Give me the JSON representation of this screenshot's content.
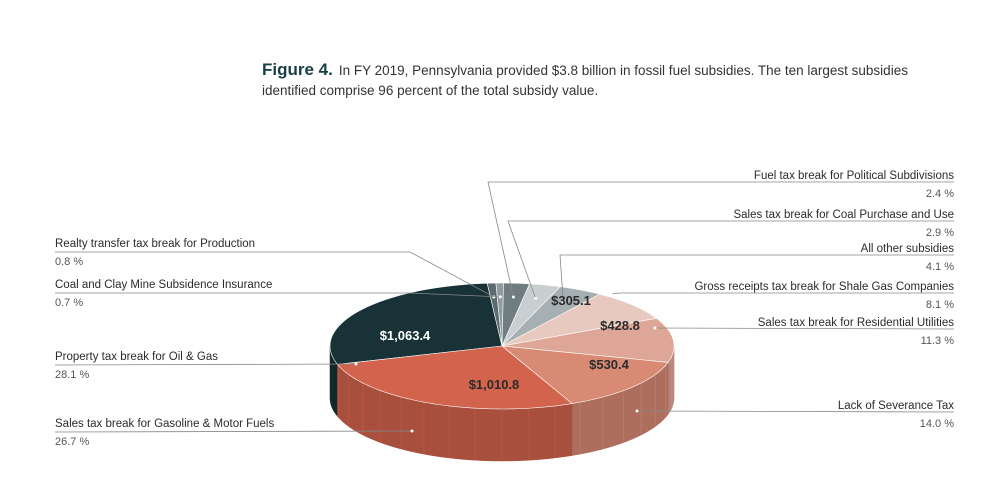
{
  "caption": {
    "figure_label": "Figure 4.",
    "text": "In FY 2019, Pennsylvania provided $3.8 billion in fossil fuel subsidies. The ten largest subsidies identified comprise 96 percent of the total subsidy value."
  },
  "chart_data": {
    "type": "pie",
    "title": "",
    "slices": [
      {
        "name": "Property tax break for Oil & Gas",
        "percent": "28.1 %",
        "value": 1063.4,
        "value_label": "$1,063.4",
        "color": "#183238"
      },
      {
        "name": "Realty transfer tax break for Production",
        "percent": "0.8 %",
        "value": 30.3,
        "color": "#5b6a6e"
      },
      {
        "name": "Coal and Clay Mine Subsidence Insurance",
        "percent": "0.7 %",
        "value": 26.5,
        "color": "#909b9e"
      },
      {
        "name": "Fuel tax break for Political Subdivisions",
        "percent": "2.4 %",
        "value": 90.8,
        "color": "#6f7d81"
      },
      {
        "name": "Sales tax break for Coal Purchase and Use",
        "percent": "2.9 %",
        "value": 109.7,
        "color": "#c9ced0"
      },
      {
        "name": "All other subsidies",
        "percent": "4.1 %",
        "value": 155.1,
        "color": "#a6b0b3"
      },
      {
        "name": "Gross receipts tax break for Shale Gas Companies",
        "percent": "8.1 %",
        "value": 305.1,
        "value_label": "$305.1",
        "color": "#e7c9bf"
      },
      {
        "name": "Sales tax break for Residential Utilities",
        "percent": "11.3 %",
        "value": 428.8,
        "value_label": "$428.8",
        "color": "#dea696"
      },
      {
        "name": "Lack of Severance Tax",
        "percent": "14.0 %",
        "value": 530.4,
        "value_label": "$530.4",
        "color": "#d88a75"
      },
      {
        "name": "Sales tax break for Gasoline & Motor Fuels",
        "percent": "26.7 %",
        "value": 1010.8,
        "value_label": "$1,010.8",
        "color": "#d2634c"
      }
    ]
  }
}
